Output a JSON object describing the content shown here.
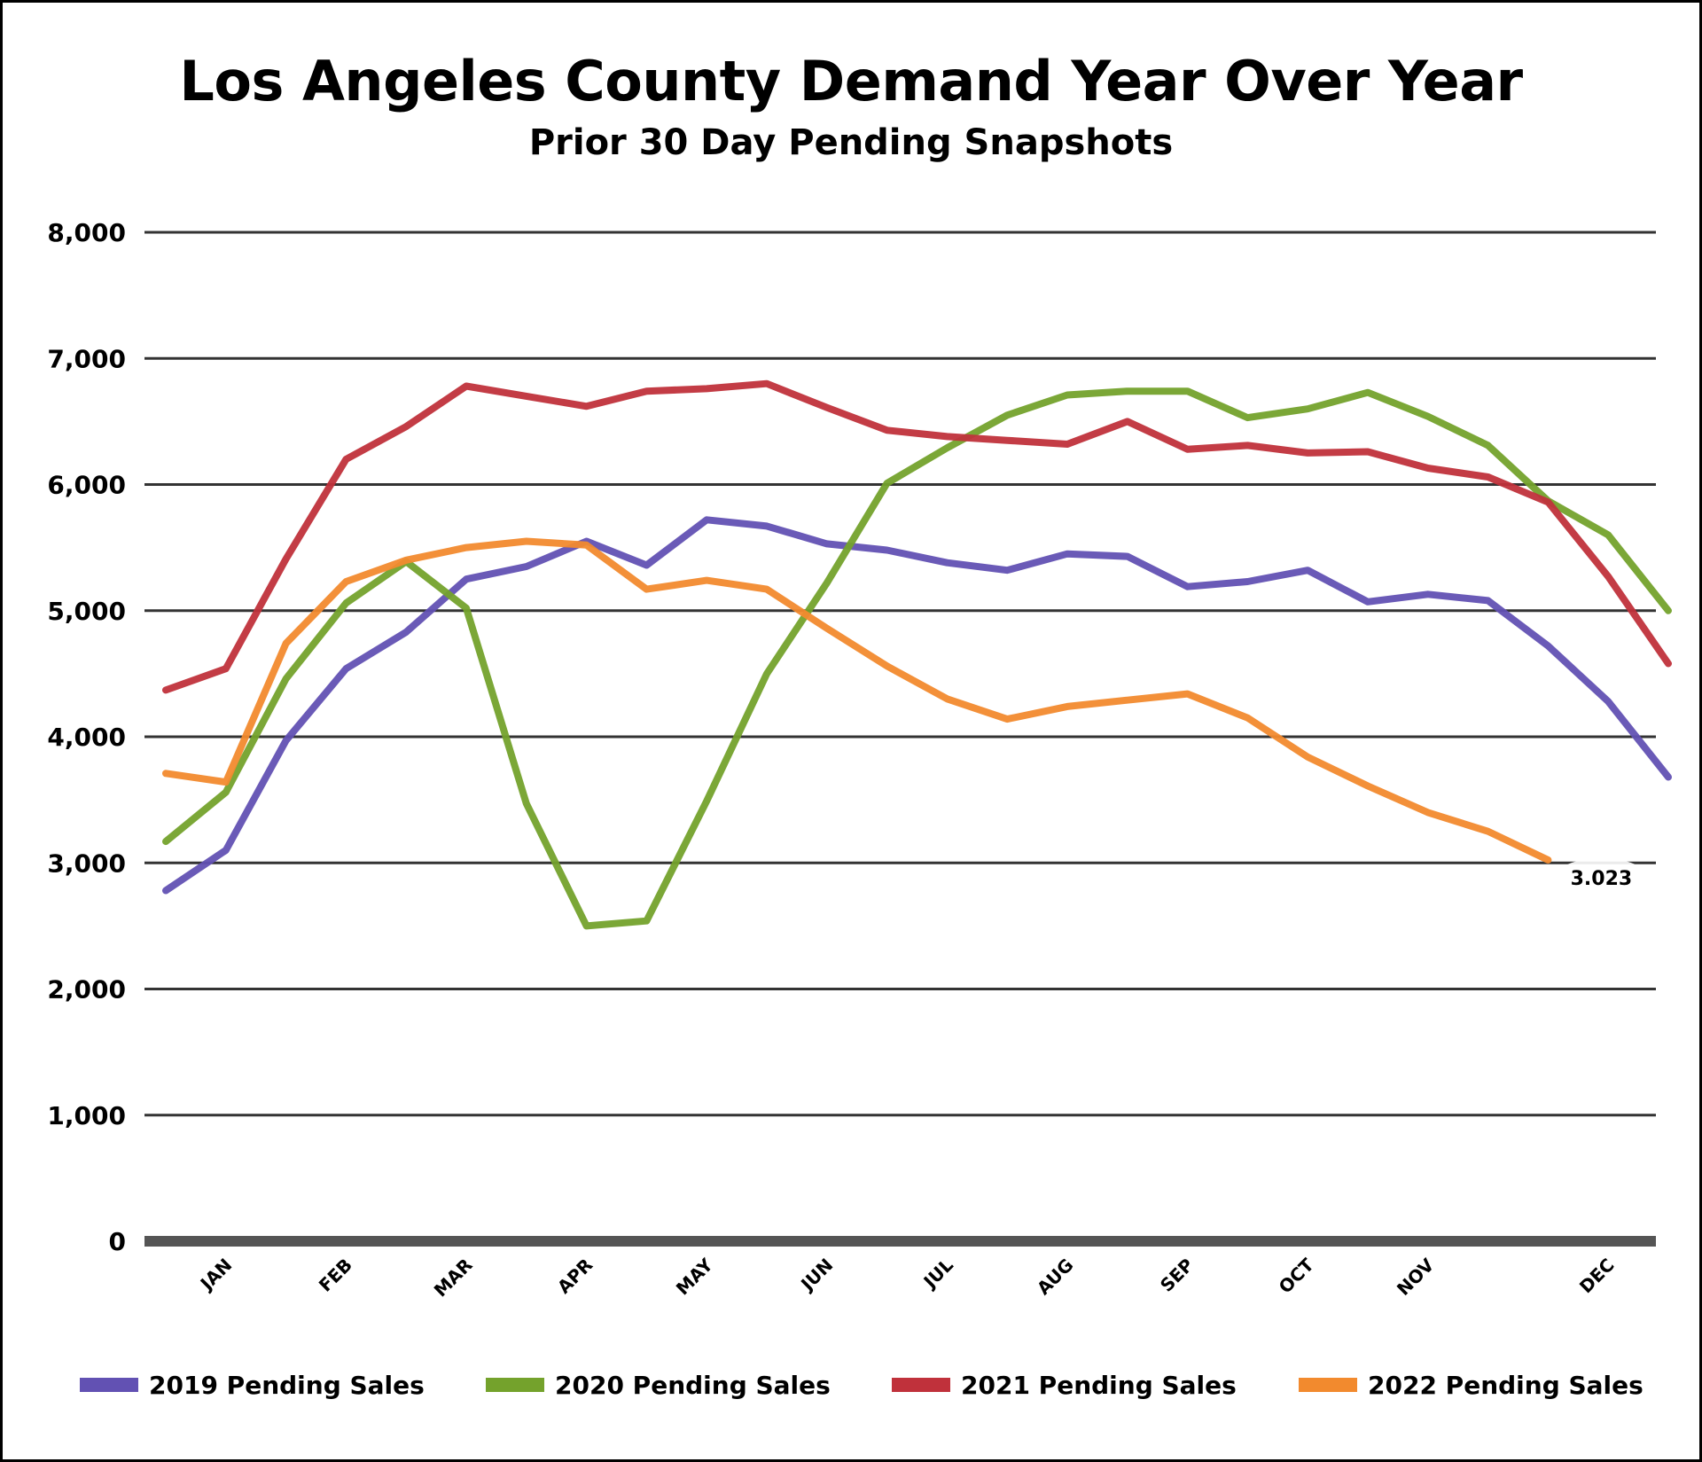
{
  "chart_data": {
    "type": "line",
    "title": "Los Angeles County Demand Year Over Year",
    "subtitle": "Prior 30 Day Pending Snapshots",
    "ylim": [
      0,
      8000
    ],
    "yticks": [
      "0",
      "1,000",
      "2,000",
      "3,000",
      "4,000",
      "5,000",
      "6,000",
      "7,000",
      "8,000"
    ],
    "ytick_values": [
      0,
      1000,
      2000,
      3000,
      4000,
      5000,
      6000,
      7000,
      8000
    ],
    "months": [
      "JAN",
      "FEB",
      "MAR",
      "APR",
      "MAY",
      "JUN",
      "JUL",
      "AUG",
      "SEP",
      "OCT",
      "NOV",
      "DEC"
    ],
    "month_positions": [
      1,
      3,
      5,
      7,
      9,
      11,
      13,
      15,
      17,
      19,
      21,
      24
    ],
    "grid": true,
    "legend_position": "bottom",
    "series": [
      {
        "name": "2019 Pending Sales",
        "color": "#6251b3",
        "points": [
          [
            0,
            2780
          ],
          [
            1,
            3100
          ],
          [
            2,
            3970
          ],
          [
            3,
            4540
          ],
          [
            4,
            4830
          ],
          [
            5,
            5250
          ],
          [
            6,
            5350
          ],
          [
            7,
            5550
          ],
          [
            8,
            5360
          ],
          [
            9,
            5720
          ],
          [
            10,
            5670
          ],
          [
            11,
            5530
          ],
          [
            12,
            5480
          ],
          [
            13,
            5380
          ],
          [
            14,
            5320
          ],
          [
            15,
            5450
          ],
          [
            16,
            5430
          ],
          [
            17,
            5190
          ],
          [
            18,
            5230
          ],
          [
            19,
            5320
          ],
          [
            20,
            5070
          ],
          [
            21,
            5130
          ],
          [
            22,
            5080
          ],
          [
            23,
            4720
          ],
          [
            24,
            4280
          ],
          [
            25,
            3680
          ]
        ]
      },
      {
        "name": "2020 Pending Sales",
        "color": "#74a22c",
        "points": [
          [
            0,
            3170
          ],
          [
            1,
            3560
          ],
          [
            2,
            4460
          ],
          [
            3,
            5060
          ],
          [
            4,
            5390
          ],
          [
            5,
            5020
          ],
          [
            6,
            3470
          ],
          [
            7,
            2500
          ],
          [
            8,
            2540
          ],
          [
            9,
            3490
          ],
          [
            10,
            4500
          ],
          [
            11,
            5220
          ],
          [
            12,
            6010
          ],
          [
            13,
            6290
          ],
          [
            14,
            6550
          ],
          [
            15,
            6710
          ],
          [
            16,
            6740
          ],
          [
            17,
            6740
          ],
          [
            18,
            6530
          ],
          [
            19,
            6600
          ],
          [
            20,
            6730
          ],
          [
            21,
            6540
          ],
          [
            22,
            6310
          ],
          [
            23,
            5870
          ],
          [
            24,
            5600
          ],
          [
            25,
            5000
          ]
        ]
      },
      {
        "name": "2021 Pending Sales",
        "color": "#c0313b",
        "points": [
          [
            0,
            4370
          ],
          [
            1,
            4540
          ],
          [
            2,
            5410
          ],
          [
            3,
            6200
          ],
          [
            4,
            6460
          ],
          [
            5,
            6780
          ],
          [
            6,
            6700
          ],
          [
            7,
            6620
          ],
          [
            8,
            6740
          ],
          [
            9,
            6760
          ],
          [
            10,
            6800
          ],
          [
            11,
            6610
          ],
          [
            12,
            6430
          ],
          [
            13,
            6380
          ],
          [
            14,
            6350
          ],
          [
            15,
            6320
          ],
          [
            16,
            6500
          ],
          [
            17,
            6280
          ],
          [
            18,
            6310
          ],
          [
            19,
            6250
          ],
          [
            20,
            6260
          ],
          [
            21,
            6130
          ],
          [
            22,
            6060
          ],
          [
            23,
            5860
          ],
          [
            24,
            5270
          ],
          [
            25,
            4580
          ]
        ]
      },
      {
        "name": "2022 Pending Sales",
        "color": "#f28a2e",
        "points": [
          [
            0,
            3710
          ],
          [
            1,
            3640
          ],
          [
            2,
            4740
          ],
          [
            3,
            5230
          ],
          [
            4,
            5400
          ],
          [
            5,
            5500
          ],
          [
            6,
            5550
          ],
          [
            7,
            5520
          ],
          [
            8,
            5170
          ],
          [
            9,
            5240
          ],
          [
            10,
            5170
          ],
          [
            11,
            4860
          ],
          [
            12,
            4560
          ],
          [
            13,
            4300
          ],
          [
            14,
            4140
          ],
          [
            15,
            4240
          ],
          [
            16,
            4290
          ],
          [
            17,
            4340
          ],
          [
            18,
            4150
          ],
          [
            19,
            3840
          ],
          [
            20,
            3610
          ],
          [
            21,
            3400
          ],
          [
            22,
            3250
          ],
          [
            23,
            3023
          ]
        ]
      }
    ],
    "annotation": {
      "text": "3.023",
      "x": 23,
      "y": 3023
    }
  }
}
